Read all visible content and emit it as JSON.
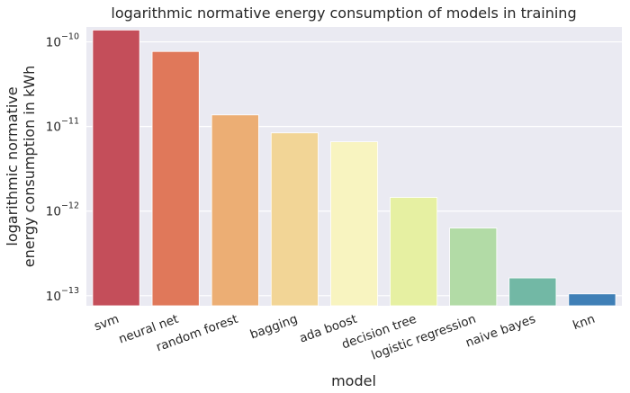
{
  "chart_data": {
    "type": "bar",
    "title": "logarithmic normative energy consumption of models in training",
    "xlabel": "model",
    "ylabel_line1": "logarithmic normative",
    "ylabel_line2": "energy consumption in kWh",
    "yscale": "log",
    "ylim": [
      7.6e-14,
      1.5e-10
    ],
    "yticks": [
      {
        "value": 1e-10,
        "base": "10",
        "exp": "−10"
      },
      {
        "value": 1e-11,
        "base": "10",
        "exp": "−11"
      },
      {
        "value": 1e-12,
        "base": "10",
        "exp": "−12"
      },
      {
        "value": 1e-13,
        "base": "10",
        "exp": "−13"
      }
    ],
    "grid": true,
    "categories": [
      "svm",
      "neural net",
      "random forest",
      "bagging",
      "ada boost",
      "decision tree",
      "logistic regression",
      "naive bayes",
      "knn"
    ],
    "values": [
      1.38e-10,
      7.7e-11,
      1.37e-11,
      8.4e-12,
      6.6e-12,
      1.45e-12,
      6.3e-13,
      1.62e-13,
      1.05e-13
    ],
    "colors": [
      "#c44e5a",
      "#e0785a",
      "#ecae74",
      "#f2d596",
      "#f8f4c0",
      "#e6f0a2",
      "#b2dba6",
      "#72b8a5",
      "#3f7fb6"
    ],
    "background": "#eaeaf2",
    "gridColor": "#ffffff"
  }
}
